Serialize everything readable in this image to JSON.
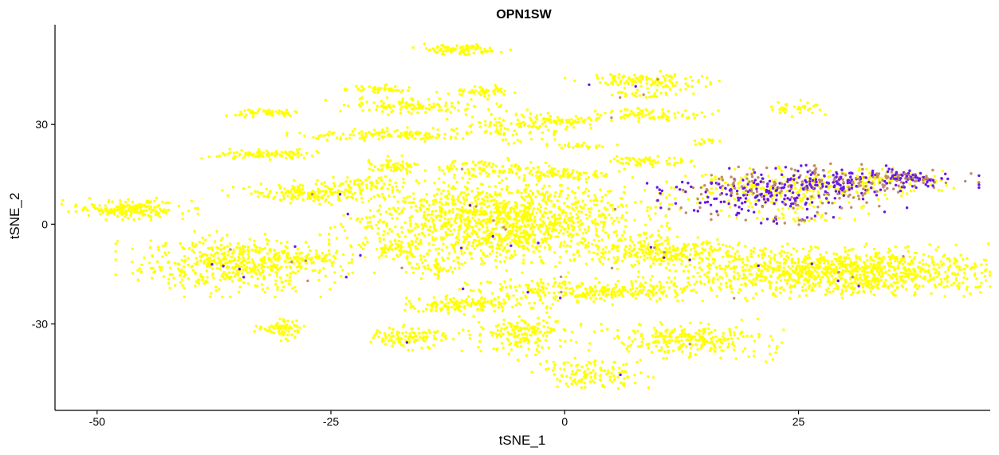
{
  "chart_data": {
    "type": "scatter",
    "title": "OPN1SW",
    "xlabel": "tSNE_1",
    "ylabel": "tSNE_2",
    "xlim": [
      -54.5,
      45.5
    ],
    "ylim": [
      -56,
      60
    ],
    "xticks": [
      -50,
      -25,
      0,
      25
    ],
    "xtick_labels": [
      "-50",
      "-25",
      "0",
      "25"
    ],
    "yticks": [
      -30,
      0,
      30
    ],
    "ytick_labels": [
      "-30",
      "0",
      "30"
    ],
    "grid": false,
    "legend": "none",
    "colors": {
      "low": "#FFFF00",
      "mid": "#C08A6A",
      "high": "#6A18E8"
    },
    "clusters": [
      {
        "cx": -46.5,
        "cy": 4.5,
        "sx": 2.8,
        "sy": 1.3,
        "n": 190,
        "expr": 0
      },
      {
        "cx": -35,
        "cy": -12,
        "sx": 5.0,
        "sy": 3.8,
        "n": 520,
        "expr": 0.01
      },
      {
        "cx": -27,
        "cy": -10,
        "sx": 2.5,
        "sy": 1.2,
        "n": 60,
        "expr": 0.05
      },
      {
        "cx": -30.5,
        "cy": -31.5,
        "sx": 1.2,
        "sy": 1.5,
        "n": 70,
        "expr": 0
      },
      {
        "cx": -32,
        "cy": 33.5,
        "sx": 1.6,
        "sy": 0.5,
        "n": 50,
        "expr": 0
      },
      {
        "cx": -32,
        "cy": 21,
        "sx": 3.0,
        "sy": 0.6,
        "n": 100,
        "expr": 0
      },
      {
        "cx": -27.5,
        "cy": 9.5,
        "sx": 3.5,
        "sy": 1.4,
        "n": 170,
        "expr": 0.01
      },
      {
        "cx": -20,
        "cy": 40.5,
        "sx": 1.5,
        "sy": 0.6,
        "n": 45,
        "expr": 0
      },
      {
        "cx": -17,
        "cy": 35.5,
        "sx": 3.5,
        "sy": 1.0,
        "n": 110,
        "expr": 0
      },
      {
        "cx": -18,
        "cy": 27,
        "sx": 4.5,
        "sy": 0.8,
        "n": 130,
        "expr": 0
      },
      {
        "cx": -18,
        "cy": 17.5,
        "sx": 1.8,
        "sy": 1.2,
        "n": 60,
        "expr": 0
      },
      {
        "cx": -21,
        "cy": 12.5,
        "sx": 1.8,
        "sy": 1.0,
        "n": 50,
        "expr": 0
      },
      {
        "cx": -11,
        "cy": 52.5,
        "sx": 2.0,
        "sy": 0.7,
        "n": 90,
        "expr": 0
      },
      {
        "cx": -9,
        "cy": 40,
        "sx": 1.8,
        "sy": 0.7,
        "n": 50,
        "expr": 0
      },
      {
        "cx": -5,
        "cy": 30,
        "sx": 3.0,
        "sy": 2.5,
        "n": 120,
        "expr": 0
      },
      {
        "cx": 0,
        "cy": 31,
        "sx": 1.8,
        "sy": 0.6,
        "n": 40,
        "expr": 0
      },
      {
        "cx": -8,
        "cy": 17,
        "sx": 3.0,
        "sy": 1.2,
        "n": 80,
        "expr": 0
      },
      {
        "cx": 0,
        "cy": 15,
        "sx": 2.5,
        "sy": 0.8,
        "n": 70,
        "expr": 0
      },
      {
        "cx": -7,
        "cy": 1,
        "sx": 7.0,
        "sy": 6.0,
        "n": 1400,
        "expr": 0.01
      },
      {
        "cx": -18,
        "cy": -8,
        "sx": 2.0,
        "sy": 1.5,
        "n": 60,
        "expr": 0
      },
      {
        "cx": -14,
        "cy": -13,
        "sx": 1.5,
        "sy": 1.3,
        "n": 40,
        "expr": 0
      },
      {
        "cx": -11,
        "cy": -24,
        "sx": 3.5,
        "sy": 1.2,
        "n": 150,
        "expr": 0
      },
      {
        "cx": -16.5,
        "cy": -34,
        "sx": 2.0,
        "sy": 1.5,
        "n": 110,
        "expr": 0.01
      },
      {
        "cx": -4.5,
        "cy": -33,
        "sx": 2.5,
        "sy": 3.0,
        "n": 180,
        "expr": 0.01
      },
      {
        "cx": 3,
        "cy": -45,
        "sx": 2.5,
        "sy": 2.0,
        "n": 130,
        "expr": 0.02
      },
      {
        "cx": 3,
        "cy": -20,
        "sx": 6.0,
        "sy": 1.6,
        "n": 300,
        "expr": 0.01
      },
      {
        "cx": 11,
        "cy": -8.5,
        "sx": 4.0,
        "sy": 2.0,
        "n": 260,
        "expr": 0.01
      },
      {
        "cx": 13,
        "cy": -35,
        "sx": 4.0,
        "sy": 2.5,
        "n": 260,
        "expr": 0.01
      },
      {
        "cx": 9,
        "cy": 43,
        "sx": 3.5,
        "sy": 1.2,
        "n": 120,
        "expr": 0.02
      },
      {
        "cx": 9,
        "cy": 39,
        "sx": 2.0,
        "sy": 0.5,
        "n": 30,
        "expr": 0.05
      },
      {
        "cx": 9,
        "cy": 33,
        "sx": 3.0,
        "sy": 0.8,
        "n": 80,
        "expr": 0.02
      },
      {
        "cx": 9,
        "cy": 19,
        "sx": 2.5,
        "sy": 0.8,
        "n": 60,
        "expr": 0
      },
      {
        "cx": 2,
        "cy": 23.5,
        "sx": 1.5,
        "sy": 0.5,
        "n": 25,
        "expr": 0
      },
      {
        "cx": 25,
        "cy": 35,
        "sx": 1.2,
        "sy": 1.0,
        "n": 40,
        "expr": 0
      },
      {
        "cx": 15.5,
        "cy": 25,
        "sx": 0.8,
        "sy": 0.5,
        "n": 15,
        "expr": 0
      },
      {
        "cx": 21,
        "cy": 9,
        "sx": 6.0,
        "sy": 3.0,
        "n": 420,
        "expr": 0.55
      },
      {
        "cx": 30,
        "cy": 13,
        "sx": 5.5,
        "sy": 2.0,
        "n": 380,
        "expr": 0.65
      },
      {
        "cx": 36.5,
        "cy": 14,
        "sx": 1.8,
        "sy": 1.0,
        "n": 80,
        "expr": 0.75
      },
      {
        "cx": 25,
        "cy": 1.5,
        "sx": 2.5,
        "sy": 0.8,
        "n": 40,
        "expr": 0.45
      },
      {
        "cx": 30,
        "cy": -14.5,
        "sx": 8.0,
        "sy": 3.3,
        "n": 1100,
        "expr": 0.01
      }
    ]
  }
}
